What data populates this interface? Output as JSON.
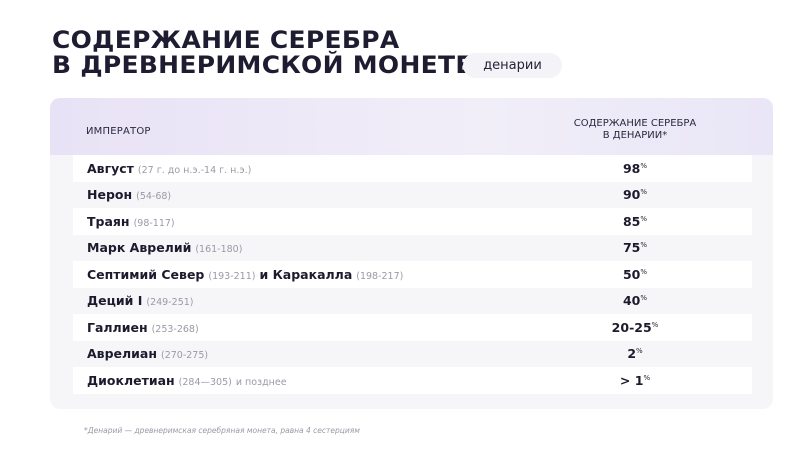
{
  "title": {
    "line1": "СОДЕРЖАНИЕ СЕРЕБРА",
    "line2": "В ДРЕВНЕРИМСКОЙ МОНЕТЕ",
    "badge": "денарии"
  },
  "table": {
    "headers": {
      "emperor": "ИМПЕРАТОР",
      "silver_line1": "СОДЕРЖАНИЕ СЕРЕБРА",
      "silver_line2": "В ДЕНАРИИ*"
    },
    "rows": [
      {
        "name": "Август",
        "years": "(27 г. до н.э.-14 г. н.э.)",
        "name2": "",
        "years2": "",
        "suffix": "",
        "value": "98",
        "unit": "%"
      },
      {
        "name": "Нерон",
        "years": "(54-68)",
        "name2": "",
        "years2": "",
        "suffix": "",
        "value": "90",
        "unit": "%"
      },
      {
        "name": "Траян",
        "years": "(98-117)",
        "name2": "",
        "years2": "",
        "suffix": "",
        "value": "85",
        "unit": "%"
      },
      {
        "name": "Марк Аврелий",
        "years": "(161-180)",
        "name2": "",
        "years2": "",
        "suffix": "",
        "value": "75",
        "unit": "%"
      },
      {
        "name": "Септимий Север",
        "years": "(193-211)",
        "name2": "и Каракалла",
        "years2": "(198-217)",
        "suffix": "",
        "value": "50",
        "unit": "%"
      },
      {
        "name": "Деций I",
        "years": "(249-251)",
        "name2": "",
        "years2": "",
        "suffix": "",
        "value": "40",
        "unit": "%"
      },
      {
        "name": "Галлиен",
        "years": "(253-268)",
        "name2": "",
        "years2": "",
        "suffix": "",
        "value": "20-25",
        "unit": "%"
      },
      {
        "name": "Аврелиан",
        "years": "(270-275)",
        "name2": "",
        "years2": "",
        "suffix": "",
        "value": "2",
        "unit": "%"
      },
      {
        "name": "Диоклетиан",
        "years": "(284—305)",
        "name2": "",
        "years2": "",
        "suffix": "и позднее",
        "value": "> 1",
        "unit": "%"
      }
    ]
  },
  "footnote": "*Денарий — древнеримская серебряная монета, равна 4 сестерциям",
  "colors": {
    "title": "#1d1c30",
    "header_bg": "#e8e2f6",
    "card_bg": "#f6f6f9",
    "muted_text": "#9a9aa6"
  }
}
